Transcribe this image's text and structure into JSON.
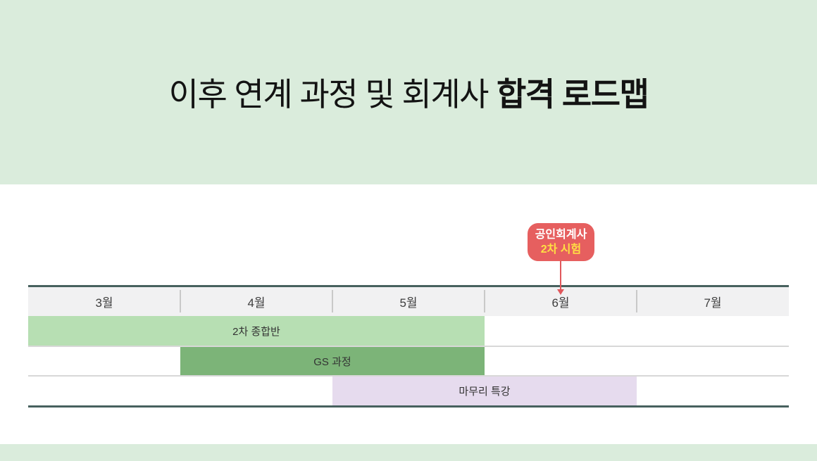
{
  "header": {
    "title_regular": "이후 연계 과정 및 회계사",
    "title_bold": "합격 로드맵"
  },
  "callout": {
    "line1": "공인회계사",
    "line2": "2차 시험",
    "points_to": "6월",
    "bg_color": "#e65f5f",
    "line1_color": "#ffffff",
    "line2_color": "#ffdf43"
  },
  "timeline": {
    "months": [
      "3월",
      "4월",
      "5월",
      "6월",
      "7월"
    ],
    "bars": [
      {
        "label": "2차 종합반",
        "from": "3월",
        "to": "5월",
        "color": "#b7dfb3"
      },
      {
        "label": "GS 과정",
        "from": "4월",
        "to": "5월",
        "color": "#7cb478"
      },
      {
        "label": "마무리 특강",
        "from": "5월",
        "to": "6월",
        "color": "#e6dbee"
      }
    ]
  },
  "chart_data": {
    "type": "bar",
    "subtype": "gantt-timeline",
    "title": "이후 연계 과정 및 회계사 합격 로드맵",
    "x_categories": [
      "3월",
      "4월",
      "5월",
      "6월",
      "7월"
    ],
    "series": [
      {
        "name": "2차 종합반",
        "start_index": 0,
        "end_index": 3,
        "start_month": "3월",
        "end_month": "5월",
        "color": "#b7dfb3"
      },
      {
        "name": "GS 과정",
        "start_index": 1,
        "end_index": 3,
        "start_month": "4월",
        "end_month": "5월",
        "color": "#7cb478"
      },
      {
        "name": "마무리 특강",
        "start_index": 2,
        "end_index": 4,
        "start_month": "5월",
        "end_month": "6월",
        "color": "#e6dbee"
      }
    ],
    "annotations": [
      {
        "label": "공인회계사 2차 시험",
        "points_to": "6월",
        "marker": "down-arrow",
        "color": "#e65f5f"
      }
    ],
    "legend_position": "none",
    "grid": "vertical-month-dividers"
  },
  "colors": {
    "band_mint": "#daecdc",
    "header_row_bg": "#f1f1f2",
    "dark_rule": "#47615e",
    "row_separator": "#d8d8d8",
    "accent_red": "#e65f5f",
    "accent_yellow": "#ffdf43"
  }
}
